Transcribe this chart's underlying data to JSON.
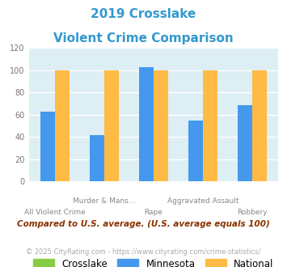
{
  "title_line1": "2019 Crosslake",
  "title_line2": "Violent Crime Comparison",
  "title_color": "#3399cc",
  "categories": [
    "All Violent Crime",
    "Murder & Mans...",
    "Rape",
    "Aggravated Assault",
    "Robbery"
  ],
  "cat_top": [
    "",
    "Murder & Mans...",
    "",
    "Aggravated Assault",
    ""
  ],
  "cat_bot": [
    "All Violent Crime",
    "",
    "Rape",
    "",
    "Robbery"
  ],
  "crosslake_values": [
    0,
    0,
    0,
    0,
    0
  ],
  "minnesota_values": [
    63,
    42,
    103,
    55,
    69
  ],
  "national_values": [
    100,
    100,
    100,
    100,
    100
  ],
  "crosslake_color": "#88cc44",
  "minnesota_color": "#4499ee",
  "national_color": "#ffbb44",
  "ylim": [
    0,
    120
  ],
  "yticks": [
    0,
    20,
    40,
    60,
    80,
    100,
    120
  ],
  "plot_bg_color": "#ddeef5",
  "grid_color": "#ffffff",
  "legend_labels": [
    "Crosslake",
    "Minnesota",
    "National"
  ],
  "footnote1": "Compared to U.S. average. (U.S. average equals 100)",
  "footnote2": "© 2025 CityRating.com - https://www.cityrating.com/crime-statistics/",
  "footnote1_color": "#883300",
  "footnote2_color": "#aaaaaa",
  "bar_width": 0.3
}
